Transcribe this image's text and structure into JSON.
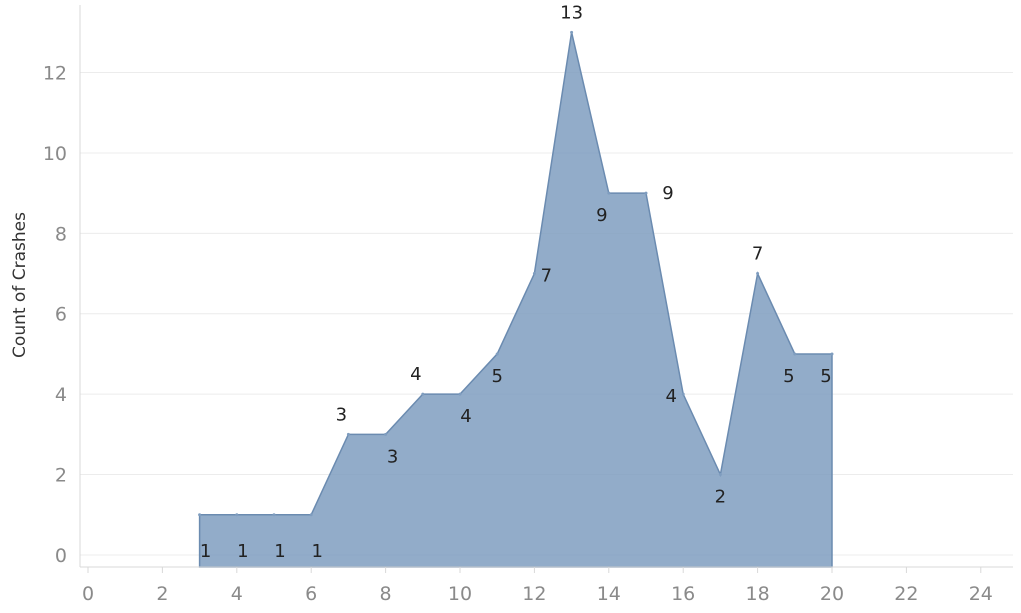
{
  "chart_data": {
    "type": "area",
    "title": "",
    "xlabel": "",
    "ylabel": "Count of Crashes",
    "xlim": [
      -0.3,
      25
    ],
    "ylim": [
      -0.3,
      14
    ],
    "x_ticks": [
      0,
      2,
      4,
      6,
      8,
      10,
      12,
      14,
      16,
      18,
      20,
      22,
      24
    ],
    "y_ticks": [
      0,
      2,
      4,
      6,
      8,
      10,
      12,
      14
    ],
    "grid": true,
    "series": [
      {
        "x": [
          3,
          4,
          5,
          6,
          7,
          8,
          9,
          10,
          11,
          12,
          13,
          14,
          15,
          16,
          17,
          18,
          19,
          20
        ],
        "values": [
          1,
          1,
          1,
          1,
          3,
          3,
          4,
          4,
          5,
          7,
          13,
          9,
          9,
          4,
          2,
          7,
          5,
          5
        ],
        "color": "#7f9dbf"
      }
    ]
  }
}
